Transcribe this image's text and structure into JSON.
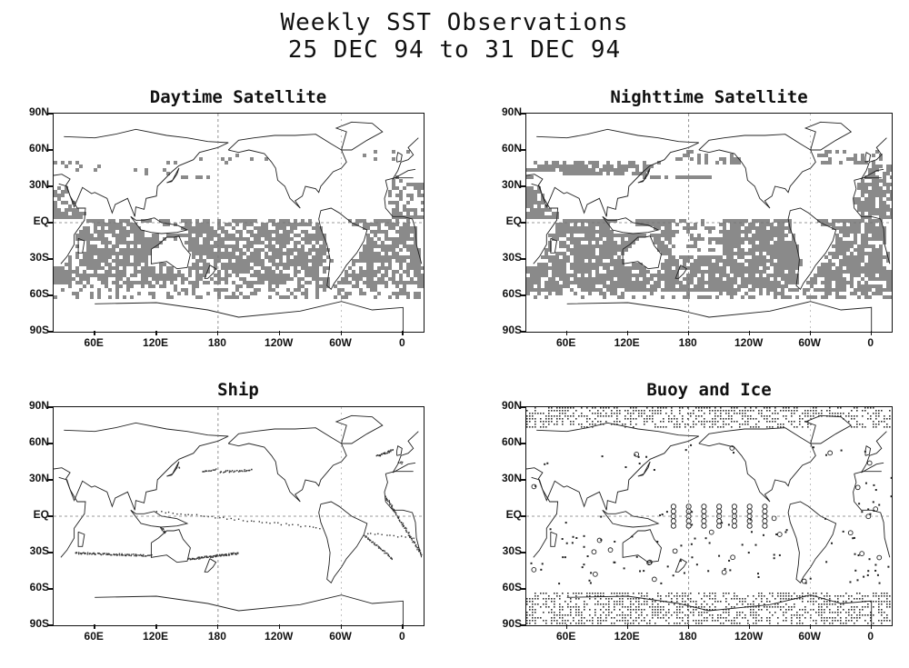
{
  "title": "Weekly SST Observations",
  "subtitle": "25 DEC 94 to 31 DEC 94",
  "lat_labels": [
    "90N",
    "60N",
    "30N",
    "EQ",
    "30S",
    "60S",
    "90S"
  ],
  "lon_labels": [
    "60E",
    "120E",
    "180",
    "120W",
    "60W",
    "0"
  ],
  "panels": [
    {
      "id": "day",
      "title": "Daytime Satellite",
      "kind": "satellite-day"
    },
    {
      "id": "night",
      "title": "Nighttime Satellite",
      "kind": "satellite-night"
    },
    {
      "id": "ship",
      "title": "Ship",
      "kind": "ship"
    },
    {
      "id": "buoy",
      "title": "Buoy and Ice",
      "kind": "buoy"
    }
  ],
  "colors": {
    "coverage": "#8a8a8a",
    "coast": "#222222",
    "ice": "#333333"
  }
}
